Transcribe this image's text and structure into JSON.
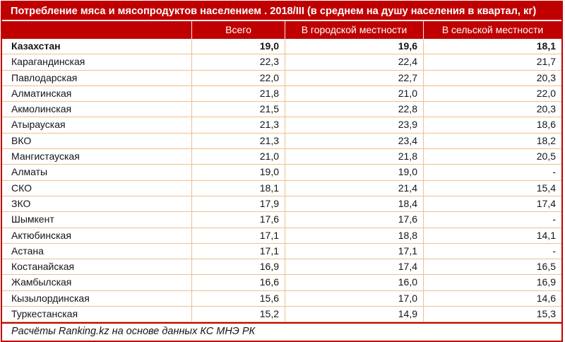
{
  "chart_data": {
    "type": "table",
    "title": "Потребление мяса и мясопродуктов населением . 2018/III (в среднем на душу населения в квартал, кг)",
    "columns": [
      "",
      "Всего",
      "В городской местности",
      "В сельской местности"
    ],
    "rows": [
      [
        "Казахстан",
        "19,0",
        "19,6",
        "18,1"
      ],
      [
        "Карагандинская",
        "22,3",
        "22,4",
        "21,7"
      ],
      [
        "Павлодарская",
        "22,0",
        "22,7",
        "20,3"
      ],
      [
        "Алматинская",
        "21,8",
        "21,0",
        "22,0"
      ],
      [
        "Акмолинская",
        "21,5",
        "22,8",
        "20,3"
      ],
      [
        "Атырауская",
        "21,3",
        "23,9",
        "18,6"
      ],
      [
        "ВКО",
        "21,3",
        "23,4",
        "18,2"
      ],
      [
        "Мангистауская",
        "21,0",
        "21,8",
        "20,5"
      ],
      [
        "Алматы",
        "19,0",
        "19,0",
        "-"
      ],
      [
        "СКО",
        "18,1",
        "21,4",
        "15,4"
      ],
      [
        "ЗКО",
        "17,9",
        "18,4",
        "17,4"
      ],
      [
        "Шымкент",
        "17,6",
        "17,6",
        "-"
      ],
      [
        "Актюбинская",
        "17,1",
        "18,8",
        "14,1"
      ],
      [
        "Астана",
        "17,1",
        "17,1",
        "-"
      ],
      [
        "Костанайская",
        "16,9",
        "17,4",
        "16,5"
      ],
      [
        "Жамбылская",
        "16,6",
        "16,0",
        "16,9"
      ],
      [
        "Кызылординская",
        "15,6",
        "17,0",
        "14,6"
      ],
      [
        "Туркестанская",
        "15,2",
        "14,9",
        "15,3"
      ]
    ],
    "bold_rows": [
      0
    ],
    "footer": "Расчёты Ranking.kz на основе данных КС МНЭ РК",
    "colors": {
      "header_bg": "#C00000",
      "header_text": "#FFFFFF",
      "row_border": "#F2BE8C",
      "body_text": "#151515"
    }
  }
}
